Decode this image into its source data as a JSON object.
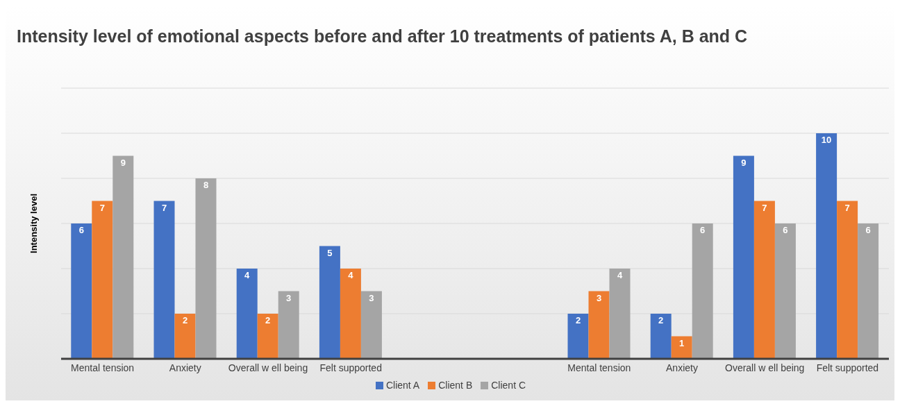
{
  "chart_data": {
    "type": "bar",
    "title": "Intensity level of emotional aspects before and after 10 treatments of patients A, B and C",
    "ylabel": "Intensity level",
    "categories": [
      "Mental tension",
      "Anxiety",
      "Overall w ell being",
      "Felt supported",
      null,
      null,
      "Mental tension",
      "Anxiety",
      "Overall w ell being",
      "Felt supported"
    ],
    "series": [
      {
        "name": "Client A",
        "color": "#4472c4",
        "values": [
          6,
          7,
          4,
          5,
          null,
          null,
          2,
          2,
          9,
          10
        ]
      },
      {
        "name": "Client B",
        "color": "#ed7d31",
        "values": [
          7,
          2,
          2,
          4,
          null,
          null,
          3,
          1,
          7,
          7
        ]
      },
      {
        "name": "Client C",
        "color": "#a5a5a5",
        "values": [
          9,
          8,
          3,
          3,
          null,
          null,
          4,
          6,
          6,
          6
        ]
      }
    ],
    "ylim": [
      0,
      12
    ],
    "yticks": [
      {
        "value": 0,
        "label": null
      },
      {
        "value": 2,
        "label": null
      },
      {
        "value": 4,
        "label": null
      },
      {
        "value": 6,
        "label": null
      },
      {
        "value": 8,
        "label": null
      },
      {
        "value": 10,
        "label": null
      },
      {
        "value": 12,
        "label": null
      }
    ],
    "tick_labels": "x",
    "grid": "y",
    "legend": "bottom",
    "data_labels": true
  }
}
